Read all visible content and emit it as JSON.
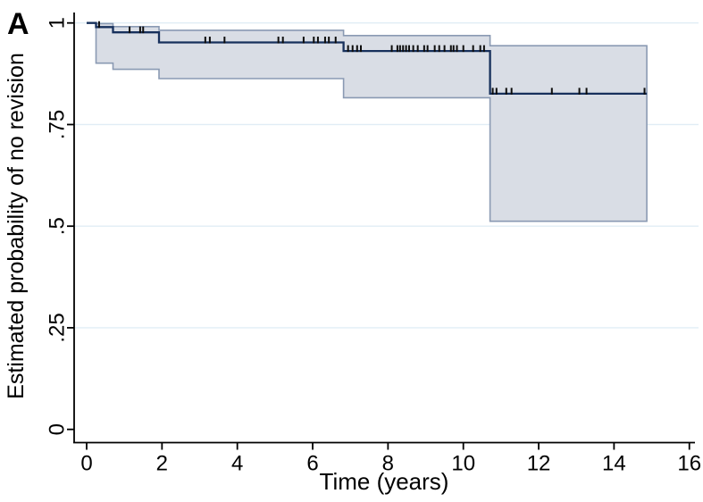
{
  "panel_label": "A",
  "chart_data": {
    "type": "line",
    "subtype": "kaplan-meier-step-with-ci-band",
    "title": "",
    "xlabel": "Time (years)",
    "ylabel": "Estimated probability of no revision",
    "xlim": [
      0,
      16
    ],
    "ylim": [
      0,
      1
    ],
    "xticks": {
      "values": [
        0,
        2,
        4,
        6,
        8,
        10,
        12,
        14,
        16
      ],
      "labels": [
        "0",
        "2",
        "4",
        "6",
        "8",
        "10",
        "12",
        "14",
        "16"
      ]
    },
    "yticks": {
      "values": [
        0,
        0.25,
        0.5,
        0.75,
        1
      ],
      "labels": [
        "0",
        ".25",
        ".5",
        ".75",
        "1"
      ]
    },
    "grid": "horizontal",
    "legend": "none",
    "end_time": 14.87,
    "survival_steps": [
      [
        0,
        1.0
      ],
      [
        0.25,
        0.99
      ],
      [
        0.7,
        0.977
      ],
      [
        1.92,
        0.952
      ],
      [
        6.82,
        0.931
      ],
      [
        10.71,
        0.826
      ]
    ],
    "ci_upper_steps": [
      [
        0.25,
        0.9985
      ],
      [
        0.7,
        0.991
      ],
      [
        1.92,
        0.982
      ],
      [
        6.82,
        0.969
      ],
      [
        10.71,
        0.944
      ]
    ],
    "ci_lower_steps": [
      [
        0.25,
        0.901
      ],
      [
        0.7,
        0.886
      ],
      [
        1.92,
        0.863
      ],
      [
        6.82,
        0.816
      ],
      [
        10.71,
        0.512
      ]
    ],
    "censor_times": [
      0.33,
      1.14,
      1.42,
      1.5,
      3.15,
      3.27,
      3.66,
      5.09,
      5.21,
      5.76,
      6.03,
      6.14,
      6.33,
      6.43,
      6.61,
      6.94,
      7.06,
      7.18,
      7.28,
      8.1,
      8.25,
      8.32,
      8.4,
      8.48,
      8.56,
      8.67,
      8.79,
      8.96,
      9.05,
      9.24,
      9.36,
      9.5,
      9.67,
      9.74,
      9.83,
      10.0,
      10.26,
      10.45,
      10.55,
      10.78,
      10.88,
      11.14,
      11.28,
      12.35,
      13.08,
      13.27,
      14.81
    ],
    "colors": {
      "curve": "#17305c",
      "band_fill": "#d9dde5",
      "band_edge": "#8a9ab3",
      "gridline": "#e0edf5",
      "axis": "#000000",
      "censor": "#0d0d0d",
      "background": "#ffffff"
    }
  }
}
